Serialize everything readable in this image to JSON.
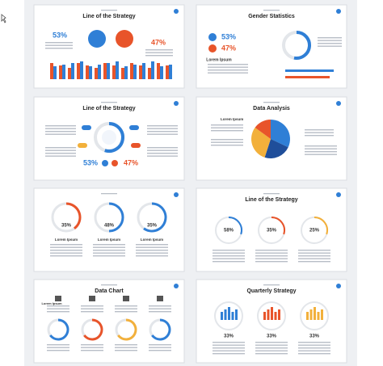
{
  "slides": [
    {
      "title": "Line of the Strategy",
      "stats": [
        "53%",
        "47%"
      ]
    },
    {
      "title": "Gender Statistics",
      "stats": [
        "53%",
        "47%"
      ],
      "label": "Lorem Ipsum"
    },
    {
      "title": "Line of the Strategy",
      "stats": [
        "53%",
        "47%"
      ]
    },
    {
      "title": "Data Analysis",
      "label": "Lorem Ipsum"
    },
    {
      "stats": [
        "35%",
        "48%",
        "35%"
      ],
      "label": "Lorem Ipsum"
    },
    {
      "title": "Line of the Strategy",
      "stats": [
        "58%",
        "35%",
        "25%"
      ]
    },
    {
      "title": "Data Chart",
      "label": "Lorem Ipsum"
    },
    {
      "title": "Quarterly Strategy",
      "stats": [
        "33%",
        "33%",
        "33%"
      ]
    }
  ]
}
